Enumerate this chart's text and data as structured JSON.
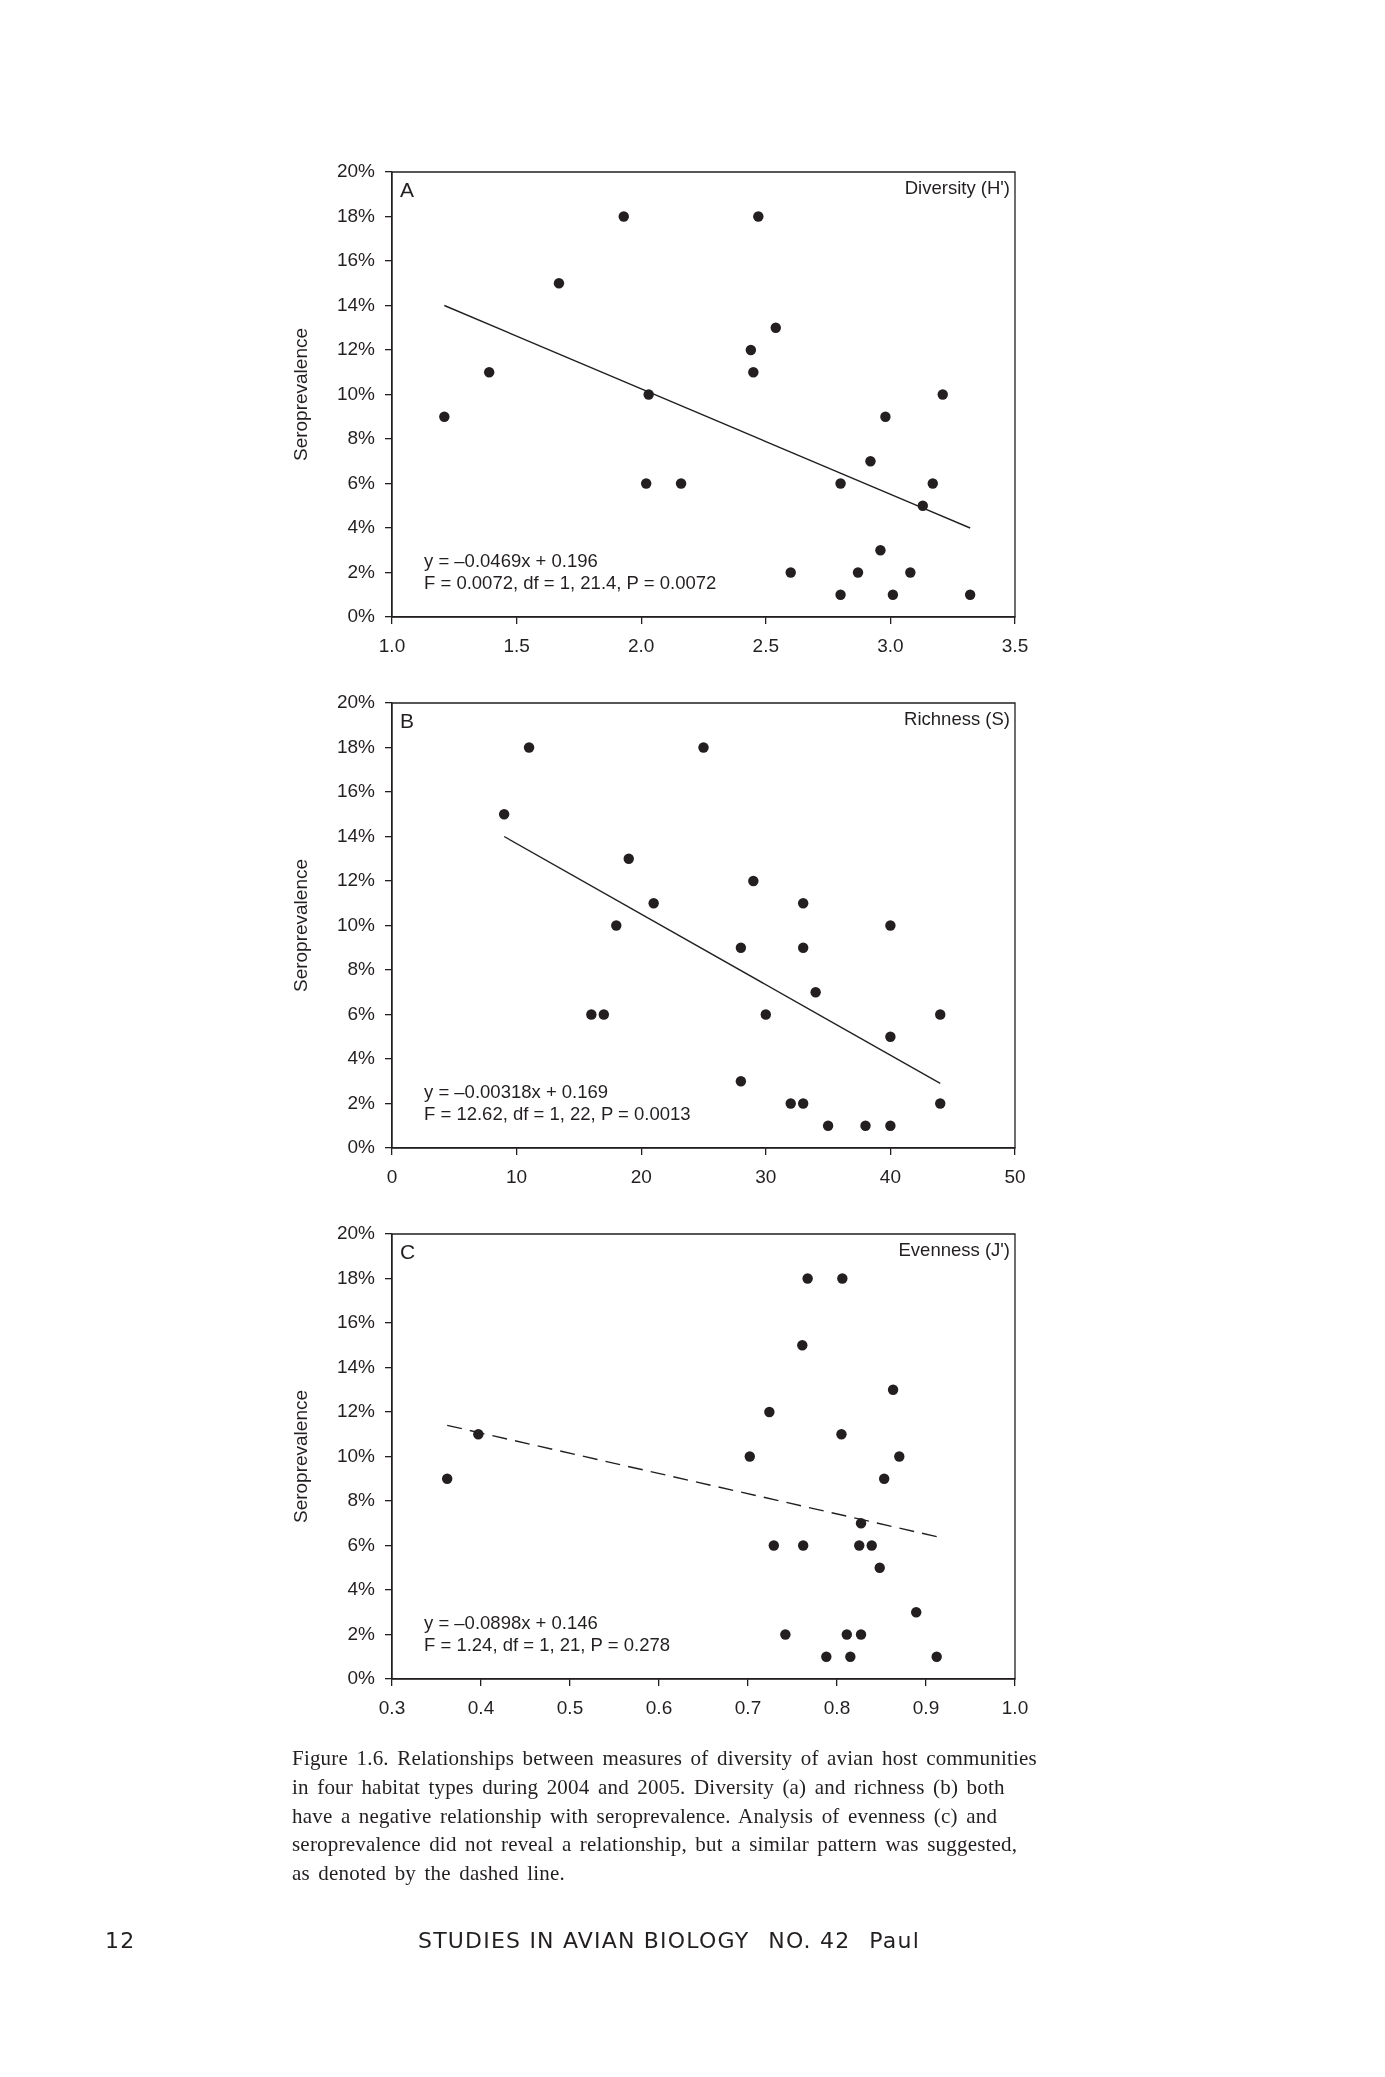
{
  "chart_data": [
    {
      "type": "scatter",
      "title": "A",
      "xlabel": "Diversity (H')",
      "ylabel": "Seroprevalence",
      "annotations": [
        "y = –0.0469x + 0.196",
        "F = 0.0072, df = 1, 21.4, P = 0.0072"
      ],
      "xlim": [
        1,
        3.5
      ],
      "xticks": [
        {
          "value": 1,
          "label": "1.0"
        },
        1.5,
        {
          "value": 2,
          "label": "2.0"
        },
        2.5,
        {
          "value": 3,
          "label": "3.0"
        },
        3.5
      ],
      "ylim": [
        0,
        20
      ],
      "yticks": [
        {
          "value": 0,
          "label": "0%"
        },
        {
          "value": 2,
          "label": "2%"
        },
        {
          "value": 4,
          "label": "4%"
        },
        {
          "value": 6,
          "label": "6%"
        },
        {
          "value": 8,
          "label": "8%"
        },
        {
          "value": 10,
          "label": "10%"
        },
        {
          "value": 12,
          "label": "12%"
        },
        {
          "value": 14,
          "label": "14%"
        },
        {
          "value": 16,
          "label": "16%"
        },
        {
          "value": 18,
          "label": "18%"
        },
        {
          "value": 20,
          "label": "20%"
        }
      ],
      "marker": "circle",
      "series": [
        {
          "x": [
            1.21,
            1.39,
            1.67,
            1.93,
            2.02,
            2.03,
            2.16,
            2.44,
            2.45,
            2.47,
            2.54,
            2.6,
            2.8,
            2.8,
            2.87,
            2.92,
            2.96,
            2.98,
            3.01,
            3.08,
            3.13,
            3.17,
            3.21,
            3.32
          ],
          "values": [
            9,
            11,
            15,
            18,
            6,
            10,
            6,
            12,
            11,
            18,
            13,
            2,
            6,
            1,
            2,
            7,
            3,
            9,
            1,
            2,
            5,
            6,
            10,
            1
          ],
          "color": "#231f20"
        },
        {
          "type": "line",
          "x": [
            1.21,
            3.32
          ],
          "values": [
            14.0,
            4.0
          ],
          "color": "#231f20",
          "marker": "none",
          "line_style": "solid"
        }
      ]
    },
    {
      "type": "scatter",
      "title": "B",
      "xlabel": "Richness (S)",
      "ylabel": "Seroprevalence",
      "annotations": [
        "y = –0.00318x + 0.169",
        "F = 12.62, df = 1, 22, P = 0.0013"
      ],
      "xlim": [
        0,
        50
      ],
      "xticks": [
        0,
        10,
        20,
        30,
        40,
        50
      ],
      "ylim": [
        0,
        20
      ],
      "yticks": [
        {
          "value": 0,
          "label": "0%"
        },
        {
          "value": 2,
          "label": "2%"
        },
        {
          "value": 4,
          "label": "4%"
        },
        {
          "value": 6,
          "label": "6%"
        },
        {
          "value": 8,
          "label": "8%"
        },
        {
          "value": 10,
          "label": "10%"
        },
        {
          "value": 12,
          "label": "12%"
        },
        {
          "value": 14,
          "label": "14%"
        },
        {
          "value": 16,
          "label": "16%"
        },
        {
          "value": 18,
          "label": "18%"
        },
        {
          "value": 20,
          "label": "20%"
        }
      ],
      "marker": "circle",
      "series": [
        {
          "x": [
            9,
            11,
            16,
            17,
            18,
            19,
            21,
            25,
            28,
            28,
            29,
            30,
            32,
            33,
            33,
            33,
            34,
            35,
            38,
            40,
            40,
            40,
            44,
            44
          ],
          "values": [
            15,
            18,
            6,
            6,
            10,
            13,
            11,
            18,
            9,
            3,
            12,
            6,
            2,
            2,
            9,
            11,
            7,
            1,
            1,
            10,
            5,
            1,
            6,
            2
          ],
          "color": "#231f20"
        },
        {
          "type": "line",
          "x": [
            9,
            44
          ],
          "values": [
            14.0,
            2.9
          ],
          "color": "#231f20",
          "marker": "none",
          "line_style": "solid"
        }
      ]
    },
    {
      "type": "scatter",
      "title": "C",
      "xlabel": "Evenness (J')",
      "ylabel": "Seroprevalence",
      "annotations": [
        "y = –0.0898x + 0.146",
        "F = 1.24, df = 1, 21, P = 0.278"
      ],
      "xlim": [
        0.3,
        1
      ],
      "xticks": [
        0.3,
        0.4,
        0.5,
        0.6,
        0.7,
        0.8,
        0.9,
        {
          "value": 1,
          "label": "1.0"
        }
      ],
      "ylim": [
        0,
        20
      ],
      "yticks": [
        {
          "value": 0,
          "label": "0%"
        },
        {
          "value": 2,
          "label": "2%"
        },
        {
          "value": 4,
          "label": "4%"
        },
        {
          "value": 6,
          "label": "6%"
        },
        {
          "value": 8,
          "label": "8%"
        },
        {
          "value": 10,
          "label": "10%"
        },
        {
          "value": 12,
          "label": "12%"
        },
        {
          "value": 14,
          "label": "14%"
        },
        {
          "value": 16,
          "label": "16%"
        },
        {
          "value": 18,
          "label": "18%"
        },
        {
          "value": 20,
          "label": "20%"
        }
      ],
      "marker": "circle",
      "series": [
        {
          "x": [
            0.362,
            0.397,
            0.702,
            0.724,
            0.729,
            0.742,
            0.761,
            0.762,
            0.767,
            0.788,
            0.805,
            0.806,
            0.811,
            0.815,
            0.825,
            0.827,
            0.827,
            0.839,
            0.848,
            0.853,
            0.863,
            0.87,
            0.889,
            0.912
          ],
          "values": [
            9,
            11,
            10,
            12,
            6,
            2,
            15,
            6,
            18,
            1,
            11,
            18,
            2,
            1,
            6,
            7,
            2,
            6,
            5,
            9,
            13,
            10,
            3,
            1
          ],
          "color": "#231f20"
        },
        {
          "type": "line",
          "x": [
            0.362,
            0.912
          ],
          "values": [
            11.4,
            6.4
          ],
          "color": "#231f20",
          "marker": "none",
          "line_style": "dashed"
        }
      ]
    },
    {
      "type": "other",
      "annotations": [
        "Figure 1.6. Relationships between measures of diversity of avian host communities in four habitat types during 2004 and 2005. Diversity (a) and richness (b) both have a negative relationship with seroprevalence. Analysis of evenness (c) and seroprevalence did not reveal a relationship, but a similar pattern was suggested, as denoted by the dashed line.",
        "12",
        "STUDIES IN AVIAN BIOLOGY",
        "NO. 42",
        "Paul"
      ]
    }
  ]
}
